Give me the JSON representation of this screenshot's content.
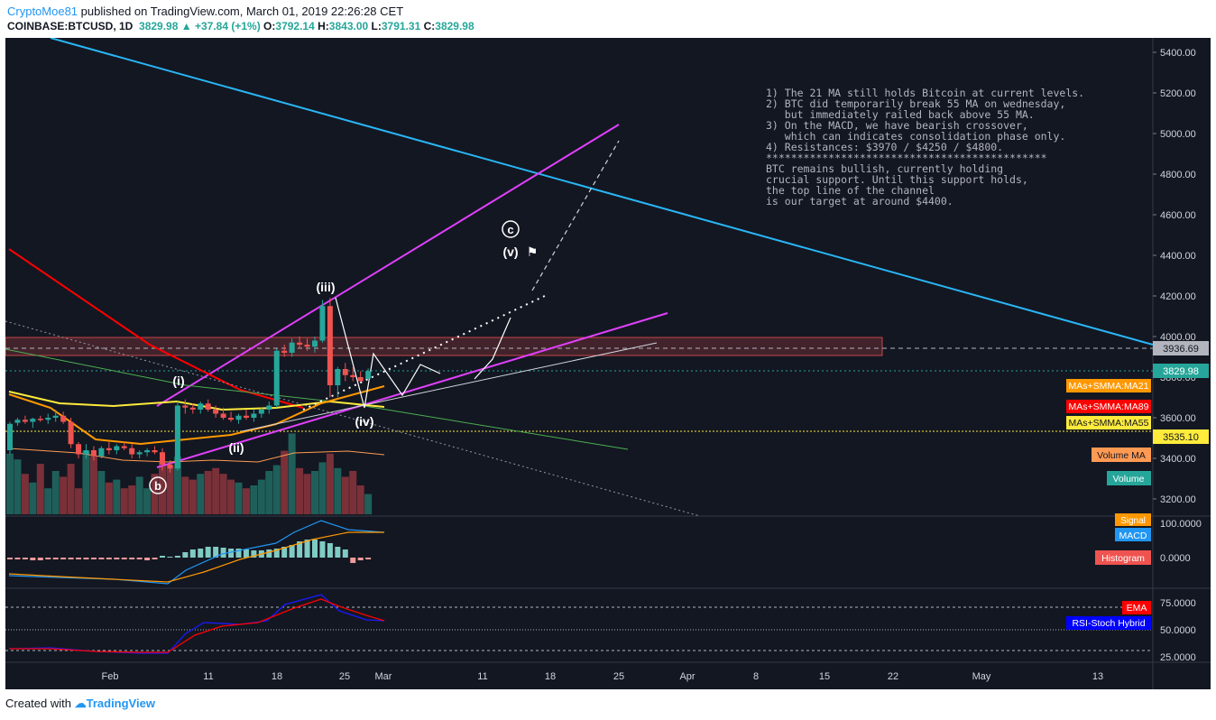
{
  "header": {
    "author": "CryptoMoe81",
    "published": " published on TradingView.com, March 01, 2019 22:26:28 CET",
    "symbol": "COINBASE:BTCUSD, 1D",
    "price": "3829.98",
    "change": "+37.84 (+1%)",
    "open_label": "O:",
    "open": "3792.14",
    "high_label": "H:",
    "high": "3843.00",
    "low_label": "L:",
    "low": "3791.31",
    "close_label": "C:",
    "close": "3829.98"
  },
  "footer": {
    "created_with": "Created with",
    "brand": "TradingView"
  },
  "colors": {
    "background": "#131722",
    "up": "#26a69a",
    "down": "#ef5350",
    "trend_blue": "#29b6f6",
    "channel_magenta": "#e040fb",
    "ma_red": "#ff0000",
    "ma_yellow": "#ffeb3b",
    "ma_orange": "#ff9800",
    "ma_green": "#4caf50"
  },
  "annotation": {
    "lines": [
      "1) The 21 MA still holds Bitcoin at current levels.",
      "2) BTC did temporarily break 55 MA on wednesday,",
      "   but immediately railed back above 55 MA.",
      "3) On the MACD, we have bearish crossover,",
      "   which can indicates consolidation phase only.",
      "4) Resistances: $3970 / $4250 / $4800.",
      "",
      "*********************************************",
      "",
      "BTC remains bullish, currently holding",
      "crucial support. Until this support holds,",
      "the top line of the channel",
      "is our target at around $4400."
    ]
  },
  "wave_labels": {
    "i": "(i)",
    "ii": "(ii)",
    "iii": "(iii)",
    "iv": "(iv)",
    "v": "(v)",
    "b": "b",
    "c": "c"
  },
  "price_tags": {
    "resistance": "3936.69",
    "current": "3829.98",
    "support": "3535.10",
    "ma21": "MAs+SMMA:MA21",
    "ma89": "MAs+SMMA:MA89",
    "ma55": "MAs+SMMA:MA55",
    "volume_ma": "Volume MA",
    "volume": "Volume",
    "signal": "Signal",
    "macd": "MACD",
    "histogram": "Histogram",
    "ema": "EMA",
    "rsi": "RSI-Stoch Hybrid"
  },
  "chart_data": [
    {
      "type": "candlestick",
      "title": "COINBASE:BTCUSD, 1D",
      "ylim": [
        3100,
        5500
      ],
      "y_ticks": [
        "5400.00",
        "5200.00",
        "5000.00",
        "4800.00",
        "4600.00",
        "4400.00",
        "4200.00",
        "4000.00",
        "3800.00",
        "3600.00",
        "3400.00",
        "3200.00"
      ],
      "x_ticks": [
        "Feb",
        "11",
        "18",
        "25",
        "Mar",
        "11",
        "18",
        "25",
        "Apr",
        "8",
        "15",
        "22",
        "May",
        "13"
      ],
      "candles": [
        [
          3440,
          3580,
          3420,
          3570
        ],
        [
          3575,
          3600,
          3560,
          3590
        ],
        [
          3590,
          3610,
          3570,
          3580
        ],
        [
          3580,
          3600,
          3550,
          3595
        ],
        [
          3595,
          3610,
          3580,
          3590
        ],
        [
          3590,
          3620,
          3570,
          3600
        ],
        [
          3600,
          3640,
          3580,
          3610
        ],
        [
          3610,
          3630,
          3570,
          3580
        ],
        [
          3580,
          3600,
          3450,
          3470
        ],
        [
          3470,
          3480,
          3400,
          3420
        ],
        [
          3420,
          3470,
          3400,
          3440
        ],
        [
          3440,
          3460,
          3390,
          3410
        ],
        [
          3410,
          3460,
          3400,
          3450
        ],
        [
          3450,
          3480,
          3420,
          3440
        ],
        [
          3440,
          3470,
          3420,
          3460
        ],
        [
          3460,
          3480,
          3440,
          3450
        ],
        [
          3450,
          3470,
          3400,
          3420
        ],
        [
          3420,
          3440,
          3400,
          3430
        ],
        [
          3430,
          3450,
          3410,
          3440
        ],
        [
          3440,
          3460,
          3420,
          3430
        ],
        [
          3430,
          3450,
          3340,
          3370
        ],
        [
          3370,
          3390,
          3330,
          3350
        ],
        [
          3350,
          3680,
          3340,
          3660
        ],
        [
          3660,
          3690,
          3620,
          3650
        ],
        [
          3650,
          3670,
          3620,
          3640
        ],
        [
          3640,
          3680,
          3620,
          3670
        ],
        [
          3670,
          3690,
          3630,
          3640
        ],
        [
          3640,
          3660,
          3600,
          3620
        ],
        [
          3620,
          3650,
          3590,
          3600
        ],
        [
          3600,
          3630,
          3580,
          3590
        ],
        [
          3590,
          3620,
          3570,
          3610
        ],
        [
          3610,
          3640,
          3590,
          3600
        ],
        [
          3600,
          3640,
          3580,
          3620
        ],
        [
          3620,
          3650,
          3600,
          3640
        ],
        [
          3640,
          3680,
          3620,
          3660
        ],
        [
          3660,
          3940,
          3650,
          3930
        ],
        [
          3930,
          3960,
          3900,
          3920
        ],
        [
          3920,
          3990,
          3900,
          3970
        ],
        [
          3970,
          4000,
          3940,
          3960
        ],
        [
          3960,
          3990,
          3930,
          3950
        ],
        [
          3950,
          4000,
          3920,
          3980
        ],
        [
          3980,
          4180,
          3970,
          4150
        ],
        [
          4150,
          4190,
          3700,
          3760
        ],
        [
          3760,
          3850,
          3700,
          3840
        ],
        [
          3840,
          3870,
          3780,
          3810
        ],
        [
          3810,
          3850,
          3780,
          3800
        ],
        [
          3800,
          3830,
          3790,
          3780
        ],
        [
          3792,
          3843,
          3791,
          3830
        ]
      ]
    },
    {
      "type": "bar",
      "title": "Volume",
      "values": [
        42,
        38,
        28,
        22,
        35,
        18,
        30,
        26,
        35,
        18,
        44,
        40,
        30,
        22,
        24,
        18,
        20,
        26,
        18,
        28,
        36,
        34,
        40,
        26,
        24,
        28,
        30,
        32,
        28,
        24,
        22,
        18,
        20,
        24,
        30,
        34,
        44,
        56,
        32,
        28,
        30,
        36,
        42,
        32,
        26,
        30,
        20,
        14
      ]
    },
    {
      "type": "line",
      "title": "MACD",
      "y_ticks": [
        "100.0000",
        "0.0000"
      ],
      "series": [
        {
          "name": "MACD"
        },
        {
          "name": "Signal"
        },
        {
          "name": "Histogram"
        }
      ]
    },
    {
      "type": "line",
      "title": "RSI-Stoch Hybrid",
      "y_ticks": [
        "75.0000",
        "50.0000",
        "25.0000"
      ],
      "series": [
        {
          "name": "RSI-Stoch Hybrid"
        },
        {
          "name": "EMA"
        }
      ]
    }
  ]
}
